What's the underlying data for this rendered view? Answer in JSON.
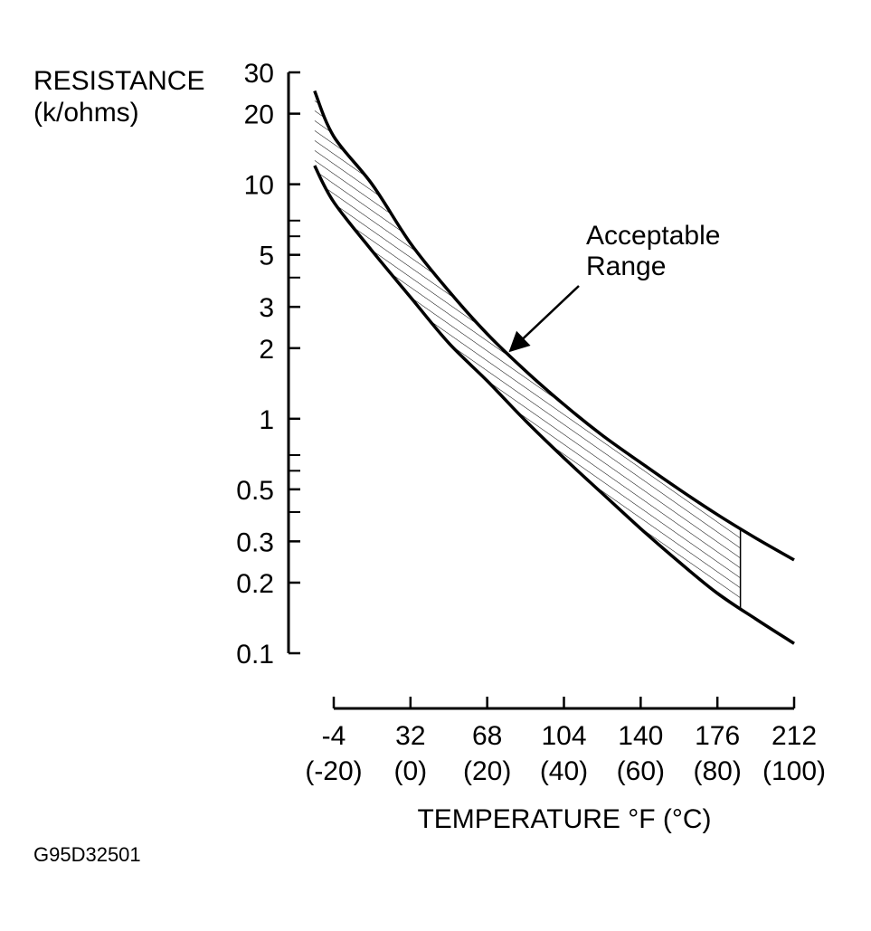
{
  "chart_data": {
    "type": "area",
    "ylabel_lines": [
      "RESISTANCE",
      "(k/ohms)"
    ],
    "xlabel": "TEMPERATURE °F (°C)",
    "yscale": "log",
    "ylim": [
      0.1,
      30
    ],
    "xlim": [
      -20,
      100
    ],
    "y_ticks": [
      {
        "value": 30,
        "label": "30"
      },
      {
        "value": 20,
        "label": "20"
      },
      {
        "value": 10,
        "label": "10"
      },
      {
        "value": 5,
        "label": "5"
      },
      {
        "value": 3,
        "label": "3"
      },
      {
        "value": 2,
        "label": "2"
      },
      {
        "value": 1,
        "label": "1"
      },
      {
        "value": 0.5,
        "label": "0.5"
      },
      {
        "value": 0.3,
        "label": "0.3"
      },
      {
        "value": 0.2,
        "label": "0.2"
      },
      {
        "value": 0.1,
        "label": "0.1"
      }
    ],
    "y_minor_ticks": [
      7,
      6,
      4,
      0.7,
      0.6,
      0.4
    ],
    "x_ticks": [
      {
        "value": -20,
        "label_f": "-4",
        "label_c": "(-20)"
      },
      {
        "value": 0,
        "label_f": "32",
        "label_c": "(0)"
      },
      {
        "value": 20,
        "label_f": "68",
        "label_c": "(20)"
      },
      {
        "value": 40,
        "label_f": "104",
        "label_c": "(40)"
      },
      {
        "value": 60,
        "label_f": "140",
        "label_c": "(60)"
      },
      {
        "value": 80,
        "label_f": "176",
        "label_c": "(80)"
      },
      {
        "value": 100,
        "label_f": "212",
        "label_c": "(100)"
      }
    ],
    "series": [
      {
        "role": "upper",
        "x": [
          -25,
          -20,
          -10,
          0,
          10,
          20,
          30,
          40,
          50,
          60,
          70,
          80,
          90,
          100
        ],
        "values": [
          25,
          16,
          10,
          5.6,
          3.5,
          2.3,
          1.6,
          1.15,
          0.85,
          0.65,
          0.5,
          0.39,
          0.31,
          0.25
        ]
      },
      {
        "role": "lower",
        "x": [
          -25,
          -20,
          -10,
          0,
          10,
          20,
          30,
          40,
          50,
          60,
          70,
          80,
          90,
          100
        ],
        "values": [
          12,
          8.4,
          5.2,
          3.3,
          2.1,
          1.45,
          0.98,
          0.68,
          0.48,
          0.34,
          0.245,
          0.18,
          0.14,
          0.11
        ]
      }
    ],
    "band_hatch_until_x": 86,
    "annotation": {
      "lines": [
        "Acceptable",
        "Range"
      ],
      "points_to": {
        "x": 26,
        "y": 1.95
      }
    },
    "grid": false
  },
  "figure_id": "G95D32501"
}
